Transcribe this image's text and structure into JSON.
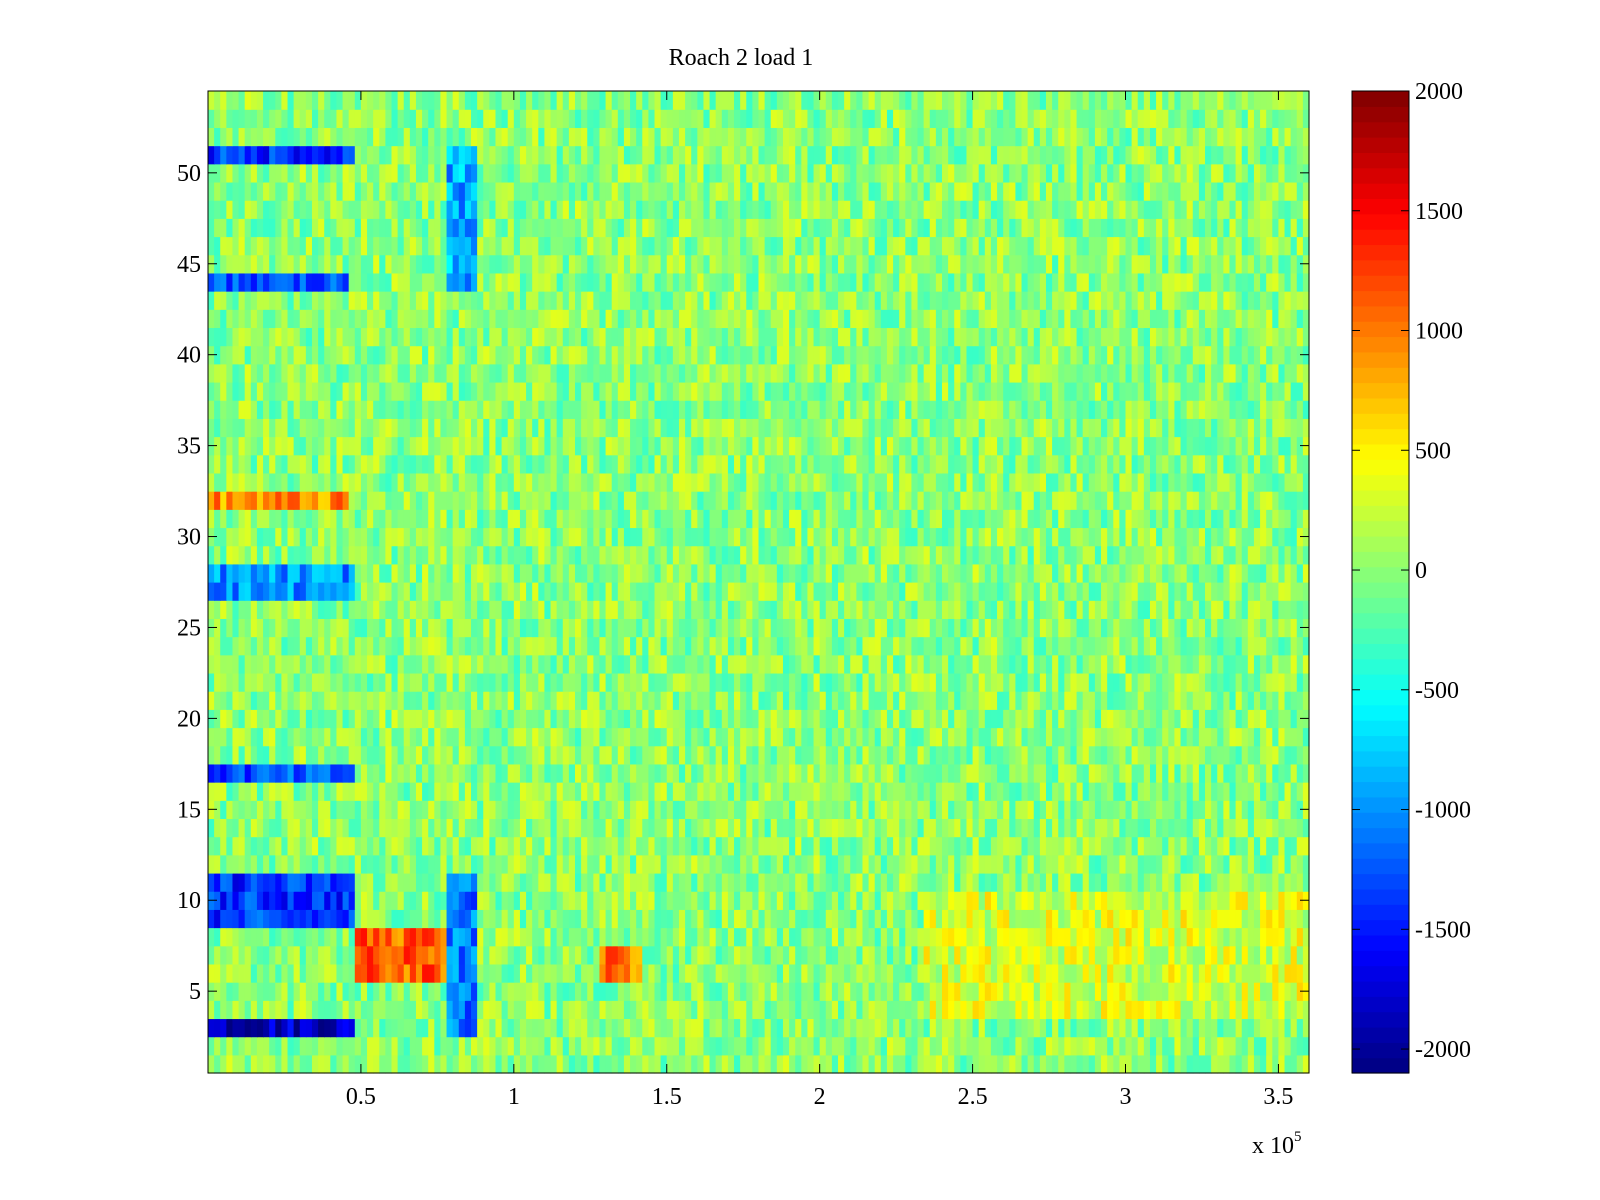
{
  "chart_data": {
    "type": "heatmap",
    "title": "Roach 2 load 1",
    "xlabel": "",
    "ylabel": "",
    "x_range": [
      0,
      360000
    ],
    "y_range": [
      0.5,
      54.5
    ],
    "x_ticks": [
      0.5,
      1,
      1.5,
      2,
      2.5,
      3,
      3.5
    ],
    "x_tick_labels": [
      "0.5",
      "1",
      "1.5",
      "2",
      "2.5",
      "3",
      "3.5"
    ],
    "x_exponent_label": {
      "base": "x 10",
      "exponent": "5"
    },
    "y_ticks": [
      5,
      10,
      15,
      20,
      25,
      30,
      35,
      40,
      45,
      50
    ],
    "y_tick_labels": [
      "5",
      "10",
      "15",
      "20",
      "25",
      "30",
      "35",
      "40",
      "45",
      "50"
    ],
    "rows": 54,
    "colormap": "jet",
    "colorbar": {
      "range": [
        -2100,
        2000
      ],
      "ticks": [
        -2000,
        -1500,
        -1000,
        -500,
        0,
        500,
        1000,
        1500,
        2000
      ],
      "tick_labels": [
        "-2000",
        "-1500",
        "-1000",
        "-500",
        "0",
        "500",
        "1000",
        "1500",
        "2000"
      ]
    },
    "typical_value": 0,
    "notable_regions": [
      {
        "rows": [
          3,
          3
        ],
        "x": [
          0,
          48000
        ],
        "value": -1800
      },
      {
        "rows": [
          9,
          11
        ],
        "x": [
          0,
          48000
        ],
        "value": -1400
      },
      {
        "rows": [
          17,
          17
        ],
        "x": [
          0,
          48000
        ],
        "value": -1300
      },
      {
        "rows": [
          27,
          28
        ],
        "x": [
          0,
          48000
        ],
        "value": -1000
      },
      {
        "rows": [
          32,
          32
        ],
        "x": [
          0,
          46000
        ],
        "value": 900
      },
      {
        "rows": [
          44,
          44
        ],
        "x": [
          0,
          46000
        ],
        "value": -1300
      },
      {
        "rows": [
          51,
          51
        ],
        "x": [
          0,
          48000
        ],
        "value": -1400
      },
      {
        "rows": [
          6,
          8
        ],
        "x": [
          48000,
          78000
        ],
        "value": 1100
      },
      {
        "rows": [
          6,
          7
        ],
        "x": [
          128000,
          142000
        ],
        "value": 1000
      },
      {
        "rows": [
          3,
          11
        ],
        "x": [
          78000,
          88000
        ],
        "value": -1100
      },
      {
        "rows": [
          44,
          51
        ],
        "x": [
          78000,
          88000
        ],
        "value": -900
      },
      {
        "rows": [
          4,
          10
        ],
        "x": [
          235000,
          360000
        ],
        "value": 300
      }
    ],
    "grid": false,
    "legend": "none"
  }
}
